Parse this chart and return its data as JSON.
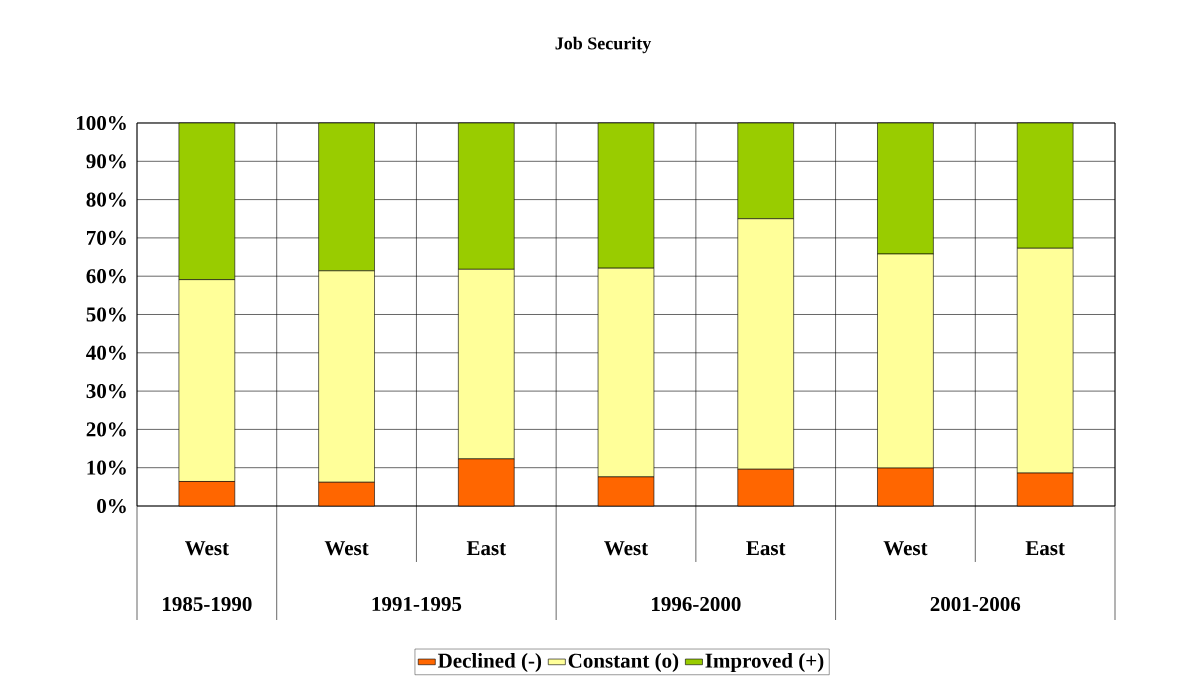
{
  "chart_data": {
    "type": "bar",
    "stacked": true,
    "title": "Job Security",
    "categories": [
      "West",
      "West",
      "East",
      "West",
      "East",
      "West",
      "East"
    ],
    "series": [
      {
        "name": "Declined (-)",
        "color": "#ff6600",
        "values": [
          6.4,
          6.2,
          12.3,
          7.6,
          9.6,
          9.9,
          8.6
        ]
      },
      {
        "name": "Constant (o)",
        "color": "#ffff99",
        "values": [
          52.7,
          55.2,
          49.5,
          54.5,
          65.4,
          55.9,
          58.7
        ]
      },
      {
        "name": "Improved (+)",
        "color": "#99cc00",
        "values": [
          40.9,
          38.6,
          38.2,
          37.9,
          25.0,
          34.2,
          32.7
        ]
      }
    ],
    "ylim": [
      0,
      100
    ],
    "yticks": [
      {
        "value": 0,
        "label": "0%"
      },
      {
        "value": 10,
        "label": "10%"
      },
      {
        "value": 20,
        "label": "20%"
      },
      {
        "value": 30,
        "label": "30%"
      },
      {
        "value": 40,
        "label": "40%"
      },
      {
        "value": 50,
        "label": "50%"
      },
      {
        "value": 60,
        "label": "60%"
      },
      {
        "value": 70,
        "label": "70%"
      },
      {
        "value": 80,
        "label": "80%"
      },
      {
        "value": 90,
        "label": "90%"
      },
      {
        "value": 100,
        "label": "100%"
      }
    ],
    "annotations": [
      "1985-1990",
      "1991-1995",
      "1996-2000",
      "2001-2006"
    ],
    "grid": true,
    "legend": "bottom"
  }
}
